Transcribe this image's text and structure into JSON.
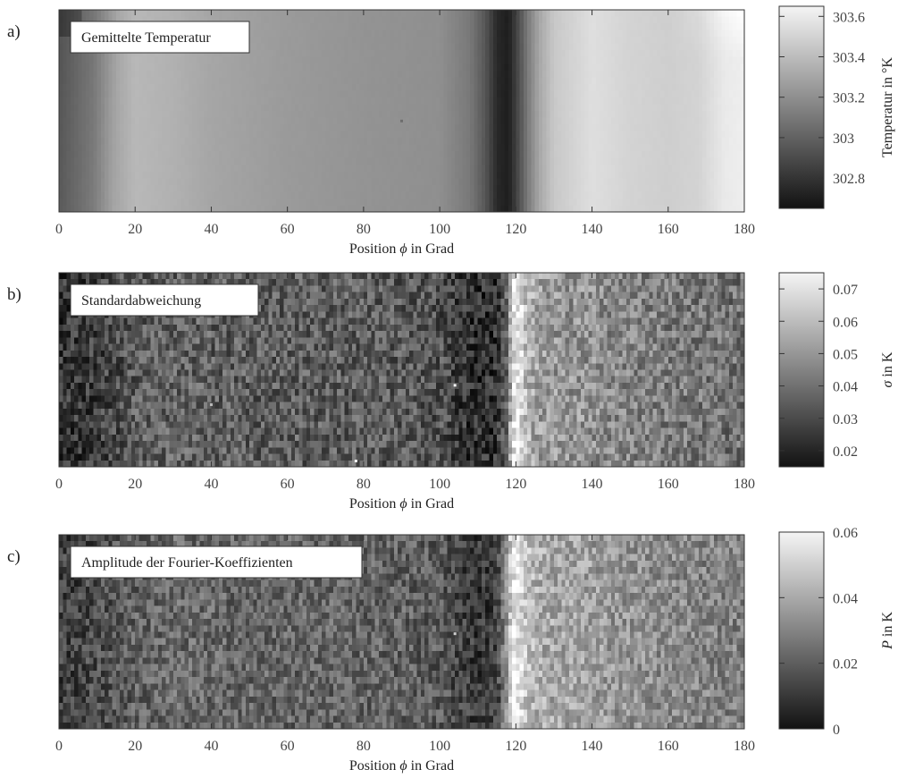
{
  "chart_data": [
    {
      "type": "heatmap",
      "panel_label": "a)",
      "title": "Gemittelte Temperatur",
      "xlabel_pre": "Position ",
      "xlabel_sym": "ϕ",
      "xlabel_post": " in Grad",
      "xlim": [
        0,
        180
      ],
      "xticks": [
        "0",
        "20",
        "40",
        "60",
        "80",
        "100",
        "120",
        "140",
        "160",
        "180"
      ],
      "colorbar": {
        "label_sym": "",
        "label": "Temperatur in °K",
        "range": [
          302.65,
          303.65
        ],
        "ticks": [
          302.8,
          303,
          303.2,
          303.4,
          303.6
        ],
        "ticklabels": [
          "302.8",
          "303",
          "303.2",
          "303.4",
          "303.6"
        ]
      },
      "profile": {
        "phi": [
          0,
          3,
          6,
          9,
          12,
          15,
          20,
          30,
          40,
          60,
          80,
          100,
          108,
          112,
          115,
          118,
          120,
          123,
          126,
          130,
          140,
          150,
          160,
          168,
          175,
          180
        ],
        "value": [
          302.95,
          303.0,
          303.05,
          303.1,
          303.2,
          303.3,
          303.38,
          303.35,
          303.3,
          303.25,
          303.22,
          303.2,
          303.1,
          302.95,
          302.75,
          302.7,
          302.85,
          303.1,
          303.3,
          303.45,
          303.55,
          303.5,
          303.48,
          303.5,
          303.6,
          303.62
        ]
      },
      "noise": 0.004,
      "spots": [
        {
          "phi": 90,
          "frac": 0.55,
          "value": 303.05
        }
      ]
    },
    {
      "type": "heatmap",
      "panel_label": "b)",
      "title": "Standardabweichung",
      "xlabel_pre": "Position ",
      "xlabel_sym": "ϕ",
      "xlabel_post": " in Grad",
      "xlim": [
        0,
        180
      ],
      "xticks": [
        "0",
        "20",
        "40",
        "60",
        "80",
        "100",
        "120",
        "140",
        "160",
        "180"
      ],
      "colorbar": {
        "label_sym": "σ",
        "label": " in K",
        "range": [
          0.015,
          0.075
        ],
        "ticks": [
          0.02,
          0.03,
          0.04,
          0.05,
          0.06,
          0.07
        ],
        "ticklabels": [
          "0.02",
          "0.03",
          "0.04",
          "0.05",
          "0.06",
          "0.07"
        ]
      },
      "profile": {
        "phi": [
          0,
          5,
          10,
          15,
          20,
          30,
          50,
          70,
          90,
          100,
          105,
          110,
          115,
          118,
          119,
          120,
          121,
          123,
          126,
          130,
          140,
          150,
          160,
          170,
          180
        ],
        "value": [
          0.024,
          0.025,
          0.027,
          0.03,
          0.034,
          0.036,
          0.035,
          0.035,
          0.034,
          0.032,
          0.026,
          0.022,
          0.024,
          0.04,
          0.065,
          0.072,
          0.07,
          0.058,
          0.052,
          0.05,
          0.048,
          0.045,
          0.043,
          0.041,
          0.04
        ]
      },
      "noise": 0.012,
      "spots": [
        {
          "phi": 104,
          "frac": 0.58,
          "value": 0.075
        },
        {
          "phi": 78,
          "frac": 0.97,
          "value": 0.075
        },
        {
          "phi": 40,
          "frac": 0.68,
          "value": 0.06
        }
      ]
    },
    {
      "type": "heatmap",
      "panel_label": "c)",
      "title": "Amplitude der Fourier-Koeffizienten",
      "xlabel_pre": "Position ",
      "xlabel_sym": "ϕ",
      "xlabel_post": " in Grad",
      "xlim": [
        0,
        180
      ],
      "xticks": [
        "0",
        "20",
        "40",
        "60",
        "80",
        "100",
        "120",
        "140",
        "160",
        "180"
      ],
      "colorbar": {
        "label_sym": "P",
        "label": " in K",
        "range": [
          0,
          0.06
        ],
        "ticks": [
          0,
          0.02,
          0.04,
          0.06
        ],
        "ticklabels": [
          "0",
          "0.02",
          "0.04",
          "0.06"
        ]
      },
      "profile": {
        "phi": [
          0,
          5,
          10,
          15,
          20,
          30,
          50,
          70,
          90,
          100,
          105,
          110,
          115,
          117,
          119,
          120,
          122,
          125,
          130,
          140,
          150,
          160,
          170,
          180
        ],
        "value": [
          0.012,
          0.013,
          0.015,
          0.018,
          0.021,
          0.023,
          0.022,
          0.022,
          0.021,
          0.019,
          0.014,
          0.01,
          0.012,
          0.03,
          0.054,
          0.058,
          0.05,
          0.042,
          0.039,
          0.037,
          0.034,
          0.032,
          0.03,
          0.029
        ]
      },
      "noise": 0.011,
      "spots": [
        {
          "phi": 104,
          "frac": 0.51,
          "value": 0.05
        }
      ]
    }
  ]
}
